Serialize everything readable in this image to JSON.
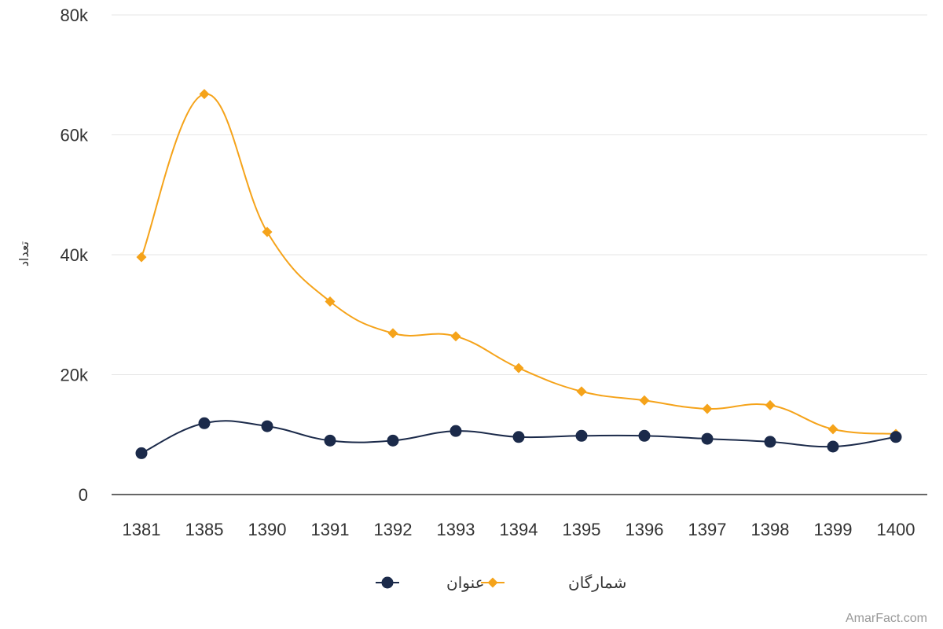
{
  "chart_data": {
    "type": "line",
    "title": "",
    "xlabel": "",
    "ylabel": "تعداد",
    "categories": [
      "1381",
      "1385",
      "1390",
      "1391",
      "1392",
      "1393",
      "1394",
      "1395",
      "1396",
      "1397",
      "1398",
      "1399",
      "1400"
    ],
    "ylim": [
      0,
      80000
    ],
    "yticks": [
      0,
      20000,
      40000,
      60000,
      80000
    ],
    "ytick_labels": [
      "0",
      "20k",
      "40k",
      "60k",
      "80k"
    ],
    "grid": true,
    "legend_position": "bottom-center",
    "series": [
      {
        "name": "شمارگان",
        "color": "#f5a31a",
        "marker": "diamond",
        "values": [
          39600,
          66800,
          43800,
          32200,
          26900,
          26400,
          21100,
          17200,
          15700,
          14300,
          14900,
          10900,
          10100
        ]
      },
      {
        "name": "عنوان",
        "color": "#1b2a4a",
        "marker": "circle",
        "values": [
          6900,
          11900,
          11400,
          9000,
          9000,
          10600,
          9600,
          9800,
          9800,
          9300,
          8800,
          8000,
          9600
        ]
      }
    ]
  },
  "credit": "AmarFact.com"
}
